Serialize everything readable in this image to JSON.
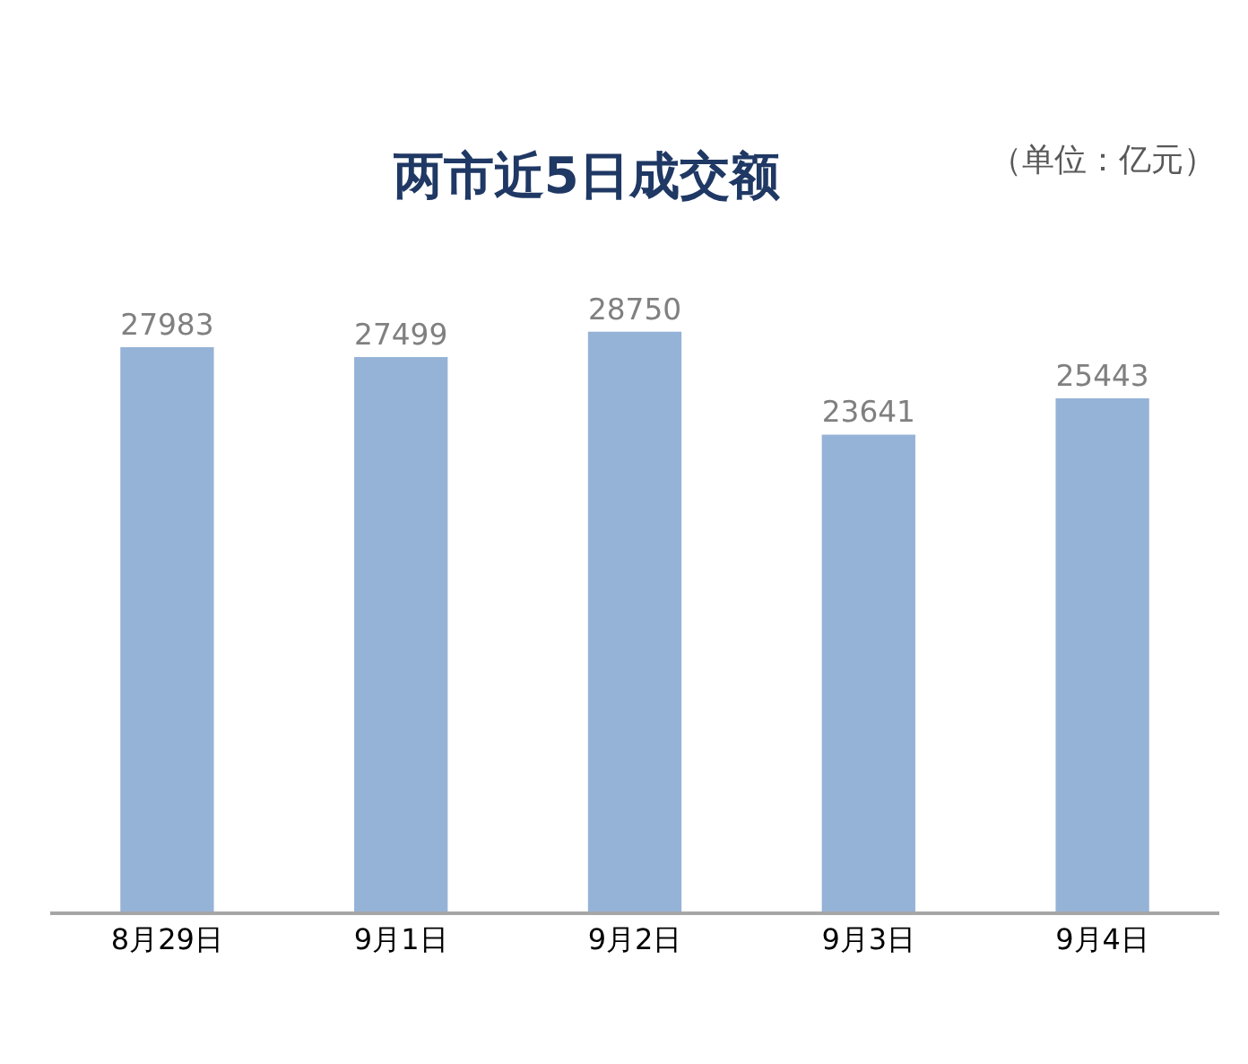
{
  "chart_data": {
    "type": "bar",
    "title": "两市近5日成交额",
    "annotations": [
      "（单位：亿元）"
    ],
    "categories": [
      "8月29日",
      "9月1日",
      "9月2日",
      "9月3日",
      "9月4日"
    ],
    "values": [
      27983,
      27499,
      28750,
      23641,
      25443
    ],
    "color": "#95b3d7",
    "data_labels": true
  }
}
